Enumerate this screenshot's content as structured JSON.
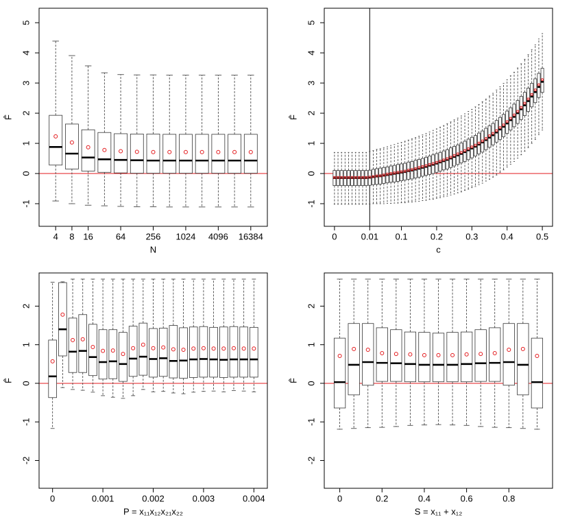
{
  "chart_data": [
    {
      "type": "box",
      "xlabel": "N",
      "ylabel": "F̂",
      "categories": [
        "4",
        "8",
        "16",
        null,
        "64",
        null,
        "256",
        null,
        "1024",
        null,
        "4096",
        null,
        "16384"
      ],
      "whisker_low": [
        -0.91,
        -1.0,
        -1.05,
        -1.07,
        -1.09,
        -1.1,
        -1.1,
        -1.11,
        -1.11,
        -1.11,
        -1.11,
        -1.11,
        -1.11
      ],
      "q1": [
        0.28,
        0.15,
        0.08,
        0.04,
        0.02,
        0.01,
        0.01,
        0.01,
        0.01,
        0.01,
        0.01,
        0.01,
        0.01
      ],
      "median": [
        0.88,
        0.66,
        0.53,
        0.47,
        0.45,
        0.44,
        0.43,
        0.43,
        0.43,
        0.43,
        0.43,
        0.43,
        0.43
      ],
      "q3": [
        1.93,
        1.64,
        1.45,
        1.36,
        1.32,
        1.31,
        1.31,
        1.3,
        1.3,
        1.3,
        1.3,
        1.3,
        1.3
      ],
      "whisker_high": [
        4.39,
        3.91,
        3.57,
        3.34,
        3.28,
        3.27,
        3.27,
        3.26,
        3.26,
        3.26,
        3.26,
        3.26,
        3.26
      ],
      "mean": [
        1.23,
        1.03,
        0.87,
        0.78,
        0.74,
        0.72,
        0.71,
        0.71,
        0.71,
        0.71,
        0.71,
        0.71,
        0.71
      ],
      "ylim": [
        -1.75,
        5.48
      ],
      "yticks": [
        -1,
        0,
        1,
        2,
        3,
        4,
        5
      ],
      "reference_line": 0,
      "reference_color": "#e3191c",
      "mean_color": "#e3191c",
      "box_color": "#333333"
    },
    {
      "type": "box",
      "xlabel": "c",
      "ylabel": "F̂",
      "categories": [
        "0",
        null,
        null,
        null,
        null,
        null,
        null,
        null,
        null,
        null,
        "0.01",
        null,
        null,
        null,
        null,
        null,
        null,
        null,
        null,
        "0.1",
        null,
        null,
        null,
        null,
        null,
        null,
        null,
        null,
        null,
        "0.2",
        null,
        null,
        null,
        null,
        null,
        null,
        null,
        null,
        null,
        "0.3",
        null,
        null,
        null,
        null,
        null,
        null,
        null,
        null,
        null,
        "0.4",
        null,
        null,
        null,
        null,
        null,
        null,
        null,
        null,
        null,
        "0.5"
      ],
      "whisker_low": [
        -1.02,
        -1.02,
        -1.02,
        -1.02,
        -1.02,
        -1.02,
        -1.02,
        -1.02,
        -1.02,
        -1.02,
        -1.01,
        -1.0,
        -1.0,
        -1.0,
        -1.0,
        -0.99,
        -0.99,
        -0.98,
        -0.98,
        -0.97,
        -0.97,
        -0.95,
        -0.95,
        -0.93,
        -0.92,
        -0.9,
        -0.89,
        -0.86,
        -0.85,
        -0.82,
        -0.8,
        -0.77,
        -0.75,
        -0.71,
        -0.68,
        -0.64,
        -0.61,
        -0.56,
        -0.52,
        -0.47,
        -0.43,
        -0.37,
        -0.32,
        -0.25,
        -0.19,
        -0.12,
        -0.05,
        0.04,
        0.12,
        0.21,
        0.31,
        0.4,
        0.51,
        0.62,
        0.74,
        0.86,
        1.0,
        1.13,
        1.29,
        1.44
      ],
      "q1": [
        -0.4,
        -0.4,
        -0.4,
        -0.4,
        -0.4,
        -0.4,
        -0.4,
        -0.4,
        -0.4,
        -0.4,
        -0.39,
        -0.37,
        -0.36,
        -0.35,
        -0.33,
        -0.31,
        -0.29,
        -0.28,
        -0.26,
        -0.24,
        -0.22,
        -0.19,
        -0.18,
        -0.15,
        -0.12,
        -0.09,
        -0.06,
        -0.03,
        0.0,
        0.04,
        0.08,
        0.12,
        0.15,
        0.2,
        0.25,
        0.3,
        0.35,
        0.4,
        0.46,
        0.52,
        0.58,
        0.65,
        0.71,
        0.79,
        0.87,
        0.95,
        1.04,
        1.13,
        1.22,
        1.33,
        1.44,
        1.55,
        1.66,
        1.79,
        1.92,
        2.06,
        2.21,
        2.35,
        2.52,
        2.69
      ],
      "median": [
        -0.15,
        -0.15,
        -0.15,
        -0.15,
        -0.15,
        -0.15,
        -0.15,
        -0.15,
        -0.15,
        -0.15,
        -0.14,
        -0.12,
        -0.1,
        -0.09,
        -0.07,
        -0.05,
        -0.03,
        -0.01,
        0.01,
        0.03,
        0.05,
        0.08,
        0.1,
        0.13,
        0.16,
        0.19,
        0.22,
        0.26,
        0.29,
        0.33,
        0.37,
        0.41,
        0.45,
        0.5,
        0.55,
        0.6,
        0.65,
        0.71,
        0.77,
        0.83,
        0.89,
        0.96,
        1.03,
        1.11,
        1.19,
        1.27,
        1.36,
        1.46,
        1.55,
        1.66,
        1.77,
        1.88,
        2.0,
        2.13,
        2.26,
        2.4,
        2.55,
        2.7,
        2.87,
        3.04
      ],
      "q3": [
        0.1,
        0.1,
        0.1,
        0.1,
        0.1,
        0.1,
        0.1,
        0.1,
        0.1,
        0.1,
        0.11,
        0.14,
        0.16,
        0.18,
        0.2,
        0.22,
        0.25,
        0.27,
        0.3,
        0.32,
        0.34,
        0.38,
        0.4,
        0.44,
        0.47,
        0.5,
        0.54,
        0.58,
        0.62,
        0.66,
        0.7,
        0.75,
        0.79,
        0.85,
        0.9,
        0.95,
        1.01,
        1.07,
        1.14,
        1.2,
        1.26,
        1.34,
        1.41,
        1.5,
        1.58,
        1.66,
        1.76,
        1.86,
        1.96,
        2.07,
        2.18,
        2.3,
        2.42,
        2.56,
        2.69,
        2.83,
        2.99,
        3.14,
        3.32,
        3.49
      ],
      "whisker_high": [
        0.7,
        0.7,
        0.7,
        0.7,
        0.7,
        0.7,
        0.7,
        0.7,
        0.7,
        0.7,
        0.73,
        0.76,
        0.8,
        0.82,
        0.86,
        0.89,
        0.93,
        0.96,
        1.0,
        1.03,
        1.07,
        1.11,
        1.15,
        1.19,
        1.24,
        1.28,
        1.33,
        1.38,
        1.43,
        1.48,
        1.54,
        1.59,
        1.65,
        1.71,
        1.78,
        1.84,
        1.91,
        1.98,
        2.06,
        2.13,
        2.21,
        2.29,
        2.38,
        2.47,
        2.57,
        2.66,
        2.77,
        2.88,
        2.99,
        3.11,
        3.24,
        3.36,
        3.5,
        3.64,
        3.79,
        3.94,
        4.11,
        4.27,
        4.46,
        4.64
      ],
      "mean": [
        -0.13,
        -0.13,
        -0.13,
        -0.13,
        -0.13,
        -0.13,
        -0.13,
        -0.13,
        -0.13,
        -0.13,
        -0.12,
        -0.1,
        -0.08,
        -0.07,
        -0.05,
        -0.02,
        0.0,
        0.02,
        0.04,
        0.06,
        0.08,
        0.11,
        0.13,
        0.16,
        0.2,
        0.23,
        0.26,
        0.3,
        0.33,
        0.37,
        0.41,
        0.45,
        0.49,
        0.54,
        0.6,
        0.65,
        0.7,
        0.76,
        0.82,
        0.88,
        0.94,
        1.01,
        1.08,
        1.16,
        1.25,
        1.33,
        1.42,
        1.52,
        1.61,
        1.72,
        1.83,
        1.94,
        2.06,
        2.19,
        2.33,
        2.47,
        2.62,
        2.77,
        2.94,
        3.11
      ],
      "ylim": [
        -1.75,
        5.48
      ],
      "yticks": [
        -1,
        0,
        1,
        2,
        3,
        4,
        5
      ],
      "reference_line": 0,
      "reference_color": "#e3191c",
      "mean_color": "#e3191c",
      "box_color": "#333333",
      "vline_category": "0.01"
    },
    {
      "type": "box",
      "xlabel": "P = x₁₁x₁₂x₂₁x₂₂",
      "ylabel": "F̂",
      "categories": [
        "0",
        null,
        null,
        null,
        null,
        "0.001",
        null,
        null,
        null,
        null,
        "0.002",
        null,
        null,
        null,
        null,
        "0.003",
        null,
        null,
        null,
        null,
        "0.004"
      ],
      "whisker_low": [
        -1.17,
        -0.11,
        -0.16,
        -0.18,
        -0.23,
        -0.32,
        -0.36,
        -0.39,
        -0.32,
        -0.16,
        -0.22,
        -0.21,
        -0.25,
        -0.27,
        -0.23,
        -0.21,
        -0.2,
        -0.22,
        -0.19,
        -0.2,
        -0.22
      ],
      "q1": [
        -0.37,
        0.71,
        0.28,
        0.28,
        0.2,
        0.11,
        0.12,
        0.05,
        0.18,
        0.21,
        0.16,
        0.18,
        0.14,
        0.13,
        0.15,
        0.16,
        0.16,
        0.15,
        0.16,
        0.16,
        0.16
      ],
      "median": [
        0.18,
        1.4,
        0.82,
        0.84,
        0.68,
        0.55,
        0.57,
        0.5,
        0.64,
        0.69,
        0.63,
        0.65,
        0.58,
        0.59,
        0.62,
        0.63,
        0.62,
        0.61,
        0.62,
        0.62,
        0.62
      ],
      "q3": [
        1.12,
        2.61,
        1.69,
        1.78,
        1.53,
        1.39,
        1.39,
        1.32,
        1.48,
        1.56,
        1.42,
        1.43,
        1.5,
        1.44,
        1.46,
        1.47,
        1.45,
        1.46,
        1.47,
        1.46,
        1.45
      ],
      "whisker_high": [
        2.62,
        2.63,
        2.7,
        2.7,
        2.7,
        2.7,
        2.7,
        2.7,
        2.7,
        2.7,
        2.7,
        2.7,
        2.7,
        2.7,
        2.7,
        2.7,
        2.7,
        2.7,
        2.7,
        2.7,
        2.7
      ],
      "mean": [
        0.57,
        1.78,
        1.12,
        1.14,
        0.94,
        0.84,
        0.85,
        0.76,
        0.91,
        1.0,
        0.91,
        0.93,
        0.88,
        0.87,
        0.9,
        0.91,
        0.9,
        0.9,
        0.91,
        0.9,
        0.9
      ],
      "ylim": [
        -2.72,
        2.86
      ],
      "yticks": [
        -2,
        -1,
        0,
        1,
        2
      ],
      "reference_line": 0,
      "reference_color": "#e3191c",
      "mean_color": "#e3191c",
      "box_color": "#333333"
    },
    {
      "type": "box",
      "xlabel": "S = x₁₁ + x₁₂",
      "ylabel": "F̂",
      "categories": [
        "0",
        null,
        null,
        "0.2",
        null,
        null,
        "0.4",
        null,
        null,
        "0.6",
        null,
        null,
        "0.8",
        null,
        null
      ],
      "whisker_low": [
        -1.19,
        -1.17,
        -1.15,
        -1.14,
        -1.12,
        -1.09,
        -1.08,
        -1.07,
        -1.08,
        -1.09,
        -1.12,
        -1.14,
        -1.15,
        -1.17,
        -1.19
      ],
      "q1": [
        -0.64,
        -0.3,
        -0.05,
        0.05,
        0.05,
        0.04,
        0.04,
        0.04,
        0.04,
        0.04,
        0.05,
        0.05,
        -0.05,
        -0.3,
        -0.64
      ],
      "median": [
        0.03,
        0.48,
        0.55,
        0.53,
        0.52,
        0.5,
        0.48,
        0.48,
        0.48,
        0.5,
        0.52,
        0.53,
        0.55,
        0.48,
        0.03
      ],
      "q3": [
        1.17,
        1.55,
        1.55,
        1.44,
        1.39,
        1.33,
        1.32,
        1.3,
        1.32,
        1.33,
        1.39,
        1.44,
        1.55,
        1.55,
        1.17
      ],
      "whisker_high": [
        2.7,
        2.7,
        2.7,
        2.7,
        2.7,
        2.7,
        2.7,
        2.7,
        2.7,
        2.7,
        2.7,
        2.7,
        2.7,
        2.7,
        2.7
      ],
      "mean": [
        0.71,
        0.89,
        0.87,
        0.78,
        0.76,
        0.75,
        0.73,
        0.73,
        0.73,
        0.75,
        0.76,
        0.78,
        0.87,
        0.89,
        0.71
      ],
      "ylim": [
        -2.72,
        2.86
      ],
      "yticks": [
        -2,
        -1,
        0,
        1,
        2
      ],
      "reference_line": 0,
      "reference_color": "#e3191c",
      "mean_color": "#e3191c",
      "box_color": "#333333"
    }
  ]
}
